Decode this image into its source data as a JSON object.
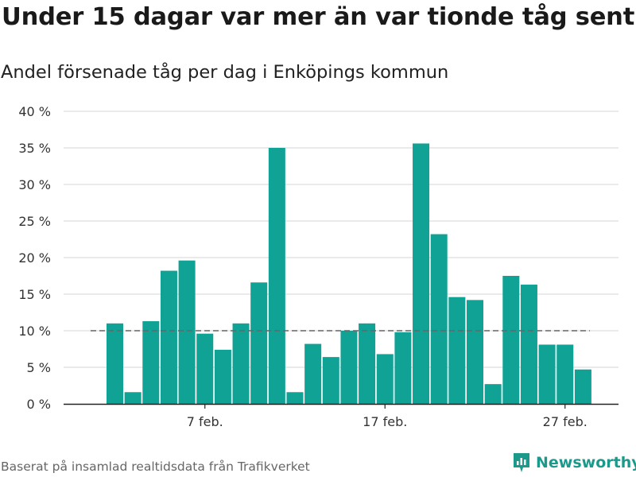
{
  "title": "Under 15 dagar var mer än var tionde tåg sent",
  "subtitle": "Andel försenade tåg per dag i Enköpings kommun",
  "source": "Baserat på insamlad realtidsdata från Trafikverket",
  "brand": {
    "name": "Newsworthy",
    "icon": "newsworthy-logo-icon",
    "color": "#1b9a8c"
  },
  "colors": {
    "bar": "#0fa295",
    "grid": "#dddddd",
    "reference_line": "#666666",
    "text": "#333333"
  },
  "chart_data": {
    "type": "bar",
    "unit": "%",
    "x": [
      "2 feb.",
      "3 feb.",
      "4 feb.",
      "5 feb.",
      "6 feb.",
      "7 feb.",
      "8 feb.",
      "9 feb.",
      "10 feb.",
      "11 feb.",
      "12 feb.",
      "13 feb.",
      "14 feb.",
      "15 feb.",
      "16 feb.",
      "17 feb.",
      "18 feb.",
      "19 feb.",
      "20 feb.",
      "21 feb.",
      "22 feb.",
      "23 feb.",
      "24 feb.",
      "25 feb.",
      "26 feb.",
      "27 feb.",
      "28 feb."
    ],
    "values": [
      11.0,
      1.6,
      11.3,
      18.2,
      19.6,
      9.6,
      7.4,
      11.0,
      16.6,
      35.0,
      1.6,
      8.2,
      6.4,
      10.0,
      11.0,
      6.8,
      9.8,
      35.6,
      23.2,
      14.6,
      14.2,
      2.7,
      17.5,
      16.3,
      8.1,
      8.1,
      4.7
    ],
    "ylim": [
      0,
      40
    ],
    "y_ticks": [
      0,
      5,
      10,
      15,
      20,
      25,
      30,
      35,
      40
    ],
    "y_tick_labels": [
      "0 %",
      "5 %",
      "10 %",
      "15 %",
      "20 %",
      "25 %",
      "30 %",
      "35 %",
      "40 %"
    ],
    "x_ticks": [
      "7 feb.",
      "17 feb.",
      "27 feb."
    ],
    "reference_line": {
      "value": 10,
      "style": "dashed"
    },
    "grid": true,
    "legend": "none",
    "xlabel": "",
    "ylabel": ""
  }
}
